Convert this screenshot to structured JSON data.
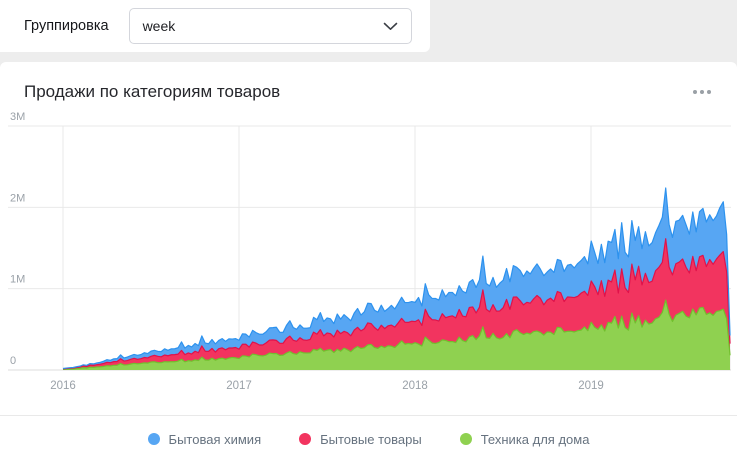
{
  "toolbar": {
    "grouping_label": "Группировка",
    "grouping_value": "week"
  },
  "card": {
    "title": "Продажи по категориям товаров"
  },
  "chart_data": {
    "type": "area",
    "stacked": true,
    "title": "Продажи по категориям товаров",
    "grouping": "week",
    "x_range": [
      2016.0,
      2019.79
    ],
    "x_ticks": [
      {
        "v": 2016,
        "label": "2016"
      },
      {
        "v": 2017,
        "label": "2017"
      },
      {
        "v": 2018,
        "label": "2018"
      },
      {
        "v": 2019,
        "label": "2019"
      }
    ],
    "ylim": [
      0,
      3000000
    ],
    "y_ticks": [
      {
        "v": 0,
        "label": "0"
      },
      {
        "v": 1000000,
        "label": "1M"
      },
      {
        "v": 2000000,
        "label": "2M"
      },
      {
        "v": 3000000,
        "label": "3M"
      }
    ],
    "legend_position": "bottom",
    "grid": true,
    "anchor_x": [
      2016.0,
      2016.1,
      2016.25,
      2016.5,
      2016.75,
      2017.0,
      2017.25,
      2017.5,
      2017.75,
      2018.0,
      2018.25,
      2018.5,
      2018.75,
      2019.0,
      2019.25,
      2019.5,
      2019.7,
      2019.76,
      2019.79
    ],
    "series": [
      {
        "name": "Бытовая химия",
        "color": "#57a6f3",
        "stroke": "#2d92ee",
        "anchors": [
          4000,
          10000,
          30000,
          60000,
          90000,
          120000,
          150000,
          180000,
          220000,
          260000,
          300000,
          340000,
          380000,
          420000,
          460000,
          500000,
          540000,
          620000,
          80000
        ]
      },
      {
        "name": "Бытовые товары",
        "color": "#f2345f",
        "stroke": "#e0124a",
        "anchors": [
          6000,
          15000,
          40000,
          70000,
          100000,
          130000,
          160000,
          200000,
          240000,
          280000,
          320000,
          360000,
          410000,
          460000,
          520000,
          580000,
          630000,
          720000,
          120000
        ]
      },
      {
        "name": "Техника для дома",
        "color": "#8fd150",
        "anchors": [
          8000,
          20000,
          50000,
          90000,
          120000,
          160000,
          200000,
          240000,
          280000,
          330000,
          380000,
          420000,
          470000,
          520000,
          580000,
          650000,
          720000,
          800000,
          150000
        ],
        "stroke": "#72bf2e"
      }
    ],
    "stack_order": [
      "Техника для дома",
      "Бытовые товары",
      "Бытовая химия"
    ],
    "noise": {
      "common_amplitude": 0.1,
      "series_amplitude": 0.06,
      "spike_probability": 0.07,
      "spike_magnitude": 0.22,
      "seed": 11
    },
    "colors": {
      "grid": "#e9e9e9",
      "baseline": "#dcdcdc",
      "tick_text": "#9aa1a8",
      "legend_text": "#66727f"
    }
  }
}
